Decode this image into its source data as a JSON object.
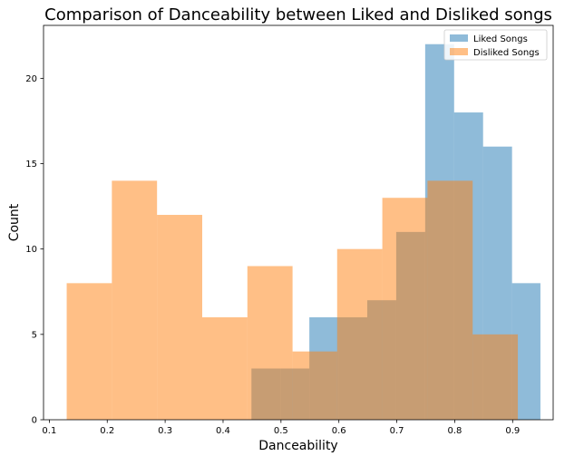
{
  "chart_data": {
    "type": "histogram",
    "title": "Comparison of Danceability between Liked and Disliked songs",
    "xlabel": "Danceability",
    "ylabel": "Count",
    "xlim": [
      0.09,
      0.97
    ],
    "ylim": [
      0,
      23.1
    ],
    "x_ticks": [
      0.1,
      0.2,
      0.3,
      0.4,
      0.5,
      0.6,
      0.7,
      0.8,
      0.9
    ],
    "x_tick_labels": [
      "0.1",
      "0.2",
      "0.3",
      "0.4",
      "0.5",
      "0.6",
      "0.7",
      "0.8",
      "0.9"
    ],
    "y_ticks": [
      0,
      5,
      10,
      15,
      20
    ],
    "y_tick_labels": [
      "0",
      "5",
      "10",
      "15",
      "20"
    ],
    "grid": false,
    "legend_position": "top-right",
    "series": [
      {
        "name": "Liked Songs",
        "color": "#1f77b4",
        "opacity": 0.5,
        "bin_edges": [
          0.449,
          0.499,
          0.549,
          0.599,
          0.649,
          0.699,
          0.749,
          0.799,
          0.849,
          0.899,
          0.948
        ],
        "counts": [
          3,
          3,
          6,
          6,
          7,
          11,
          22,
          18,
          16,
          8
        ]
      },
      {
        "name": "Disliked Songs",
        "color": "#ff7f0e",
        "opacity": 0.5,
        "bin_edges": [
          0.13,
          0.208,
          0.286,
          0.364,
          0.442,
          0.52,
          0.597,
          0.675,
          0.753,
          0.831,
          0.909
        ],
        "counts": [
          8,
          14,
          12,
          6,
          9,
          4,
          10,
          13,
          14,
          5
        ]
      }
    ]
  }
}
